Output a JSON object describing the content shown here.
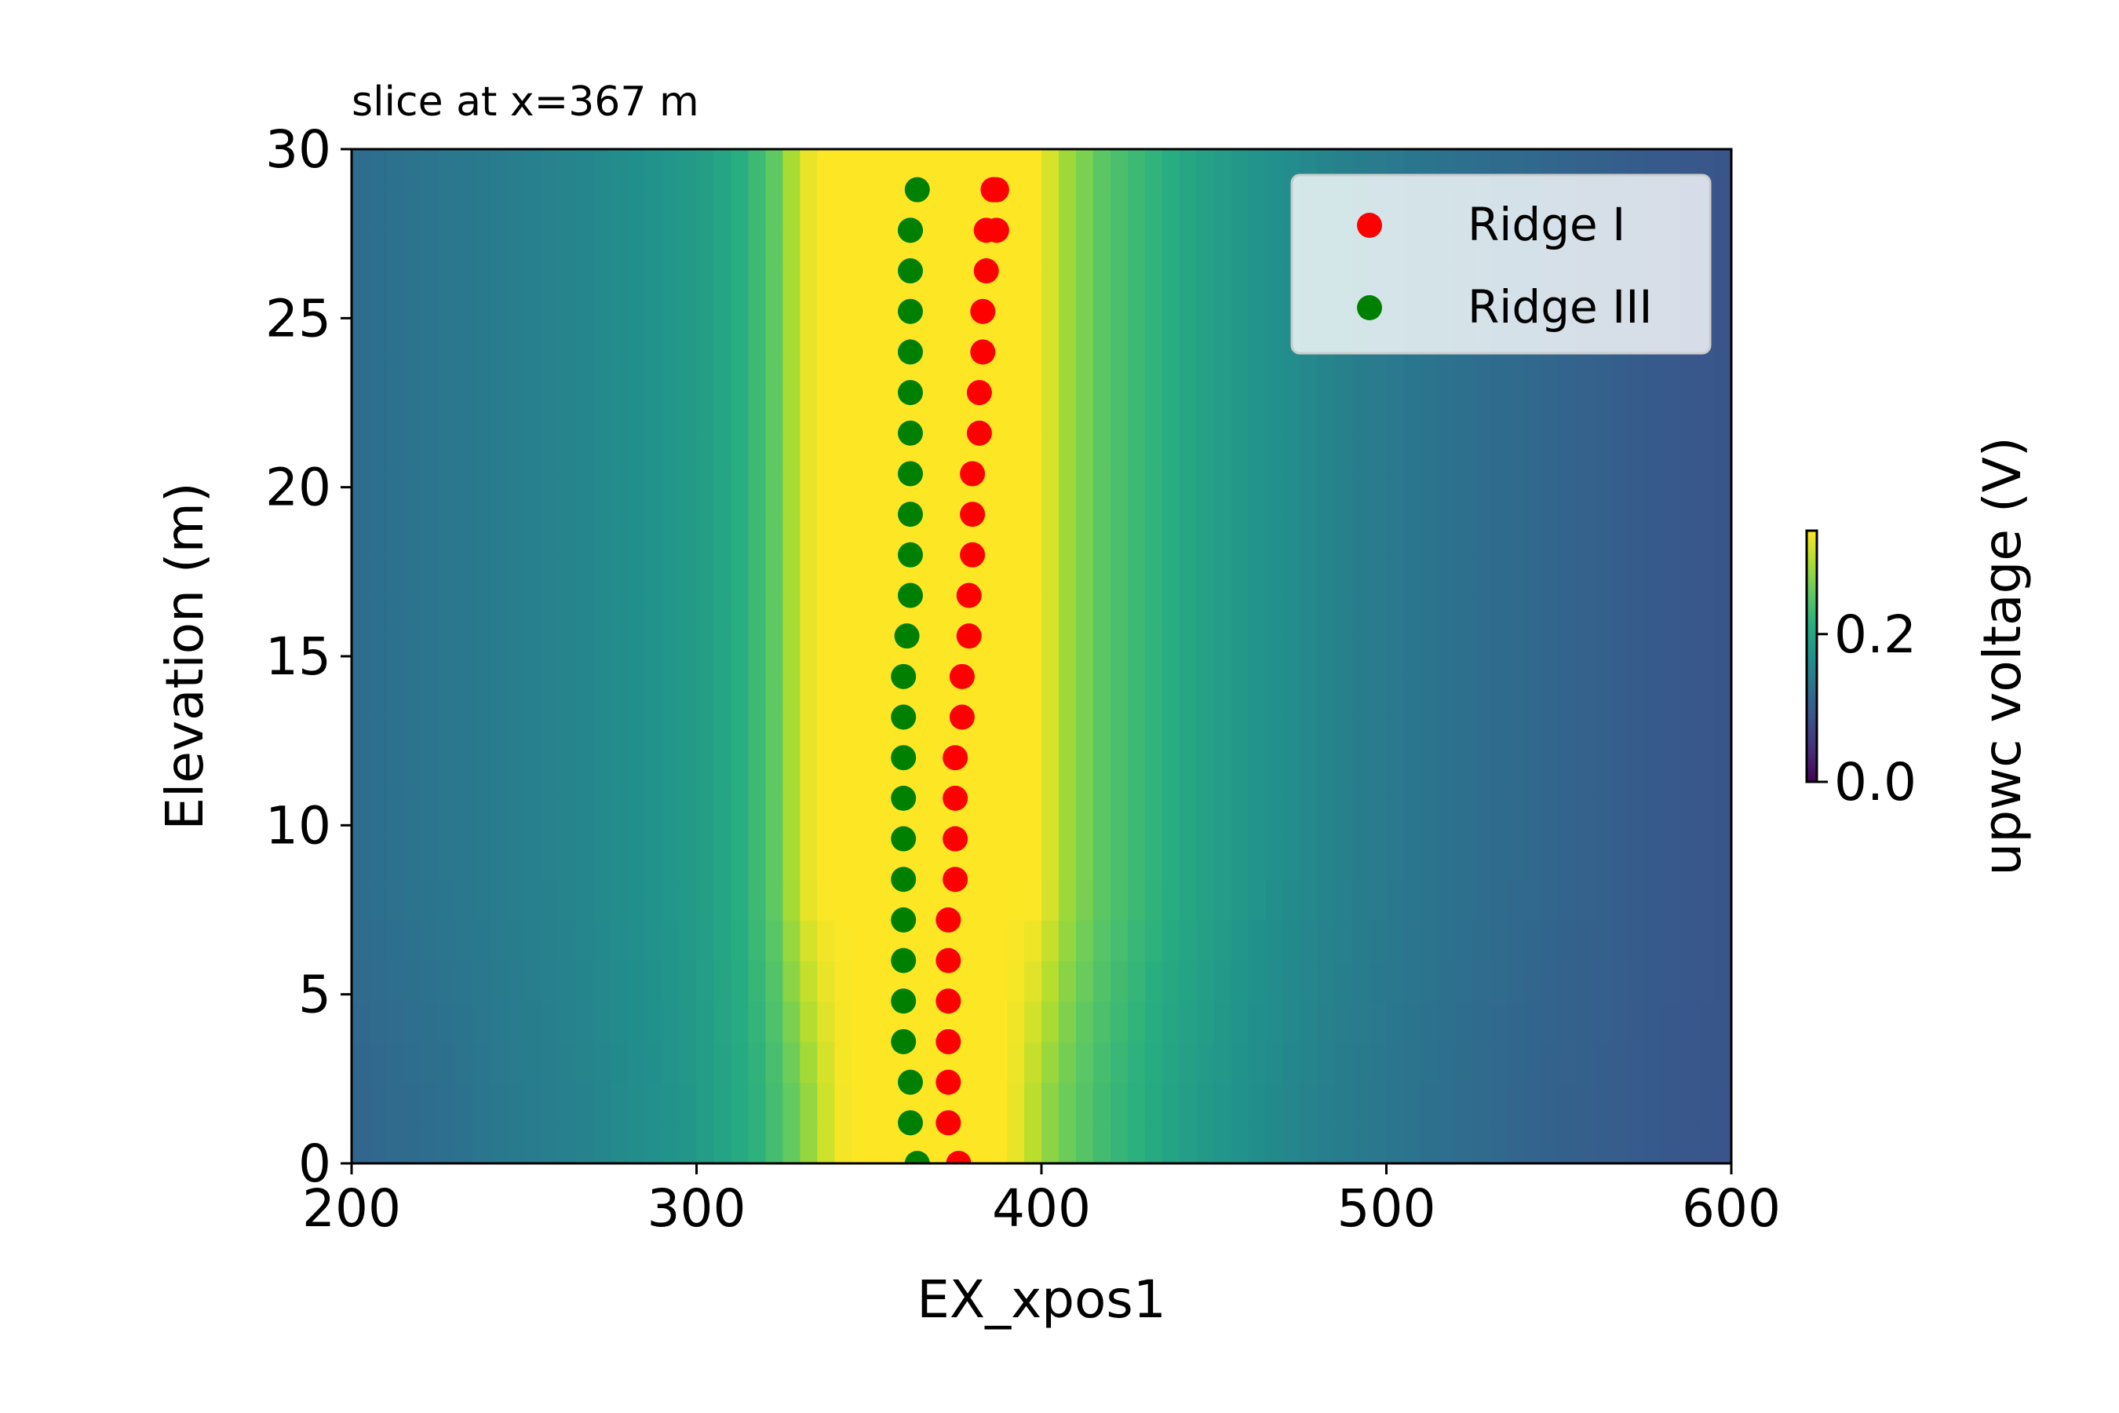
{
  "chart_data": {
    "type": "heatmap",
    "title": "slice at x=367 m",
    "xlabel": "EX_xpos1",
    "ylabel": "Elevation (m)",
    "xlim": [
      200,
      600
    ],
    "ylim": [
      0,
      30
    ],
    "x_ticks": [
      200,
      300,
      400,
      500,
      600
    ],
    "y_ticks": [
      0,
      5,
      10,
      15,
      20,
      25,
      30
    ],
    "grid": false,
    "legend_position": "top-right",
    "colorbar": {
      "label": "upwc voltage (V)",
      "colormap": "viridis",
      "range": [
        0.0,
        0.34
      ],
      "ticks": [
        0.0,
        0.2
      ],
      "tick_labels": [
        "0.0",
        "0.2"
      ]
    },
    "heatmap_profile": {
      "x": [
        200,
        210,
        220,
        230,
        240,
        250,
        260,
        270,
        280,
        290,
        295,
        300,
        305,
        310,
        315,
        320,
        325,
        330,
        335,
        340,
        345,
        350,
        355,
        360,
        365,
        370,
        375,
        380,
        385,
        390,
        395,
        400,
        405,
        410,
        415,
        420,
        425,
        430,
        435,
        440,
        445,
        450,
        455,
        460,
        465,
        470,
        475,
        480,
        490,
        500,
        510,
        520,
        530,
        540,
        550,
        560,
        570,
        580,
        590,
        600
      ],
      "value_upper": [
        0.12,
        0.125,
        0.13,
        0.135,
        0.14,
        0.145,
        0.15,
        0.158,
        0.166,
        0.175,
        0.18,
        0.185,
        0.195,
        0.205,
        0.22,
        0.24,
        0.27,
        0.32,
        0.34,
        0.34,
        0.34,
        0.34,
        0.34,
        0.34,
        0.34,
        0.34,
        0.34,
        0.34,
        0.34,
        0.34,
        0.34,
        0.34,
        0.3,
        0.28,
        0.26,
        0.245,
        0.235,
        0.225,
        0.215,
        0.205,
        0.198,
        0.19,
        0.183,
        0.177,
        0.171,
        0.165,
        0.16,
        0.155,
        0.145,
        0.138,
        0.132,
        0.126,
        0.12,
        0.115,
        0.11,
        0.105,
        0.1,
        0.095,
        0.092,
        0.09
      ],
      "value_lower": [
        0.11,
        0.115,
        0.12,
        0.125,
        0.135,
        0.14,
        0.145,
        0.153,
        0.162,
        0.17,
        0.176,
        0.182,
        0.192,
        0.2,
        0.21,
        0.225,
        0.245,
        0.27,
        0.3,
        0.33,
        0.34,
        0.34,
        0.34,
        0.34,
        0.34,
        0.34,
        0.34,
        0.34,
        0.34,
        0.34,
        0.32,
        0.29,
        0.27,
        0.255,
        0.24,
        0.228,
        0.22,
        0.21,
        0.2,
        0.193,
        0.186,
        0.18,
        0.174,
        0.168,
        0.163,
        0.158,
        0.153,
        0.148,
        0.14,
        0.133,
        0.127,
        0.121,
        0.115,
        0.11,
        0.106,
        0.102,
        0.098,
        0.094,
        0.091,
        0.089
      ]
    },
    "series": [
      {
        "name": "Ridge I",
        "color": "#ff0000",
        "x": [
          376,
          373,
          373,
          373,
          373,
          373,
          373,
          375,
          375,
          375,
          375,
          377,
          377,
          379,
          379,
          380,
          380,
          380,
          382,
          382,
          383,
          383,
          384,
          384,
          386,
          386,
          387,
          387
        ],
        "y": [
          0.0,
          1.2,
          2.4,
          3.6,
          4.8,
          6.0,
          7.2,
          8.4,
          9.6,
          10.8,
          12.0,
          13.2,
          14.4,
          15.6,
          16.8,
          18.0,
          19.2,
          20.4,
          21.6,
          22.8,
          24.0,
          25.2,
          26.4,
          27.6,
          28.8,
          28.8,
          27.6,
          28.8
        ]
      },
      {
        "name": "Ridge III",
        "color": "#008000",
        "x": [
          364,
          362,
          362,
          360,
          360,
          360,
          360,
          360,
          360,
          360,
          360,
          360,
          360,
          361,
          362,
          362,
          362,
          362,
          362,
          362,
          362,
          362,
          362,
          362,
          362,
          364
        ],
        "y": [
          0.0,
          1.2,
          2.4,
          3.6,
          4.8,
          6.0,
          7.2,
          8.4,
          9.6,
          10.8,
          12.0,
          13.2,
          14.4,
          15.6,
          16.8,
          18.0,
          19.2,
          20.4,
          21.6,
          22.8,
          24.0,
          25.2,
          26.4,
          27.6,
          27.6,
          28.8
        ]
      }
    ]
  }
}
